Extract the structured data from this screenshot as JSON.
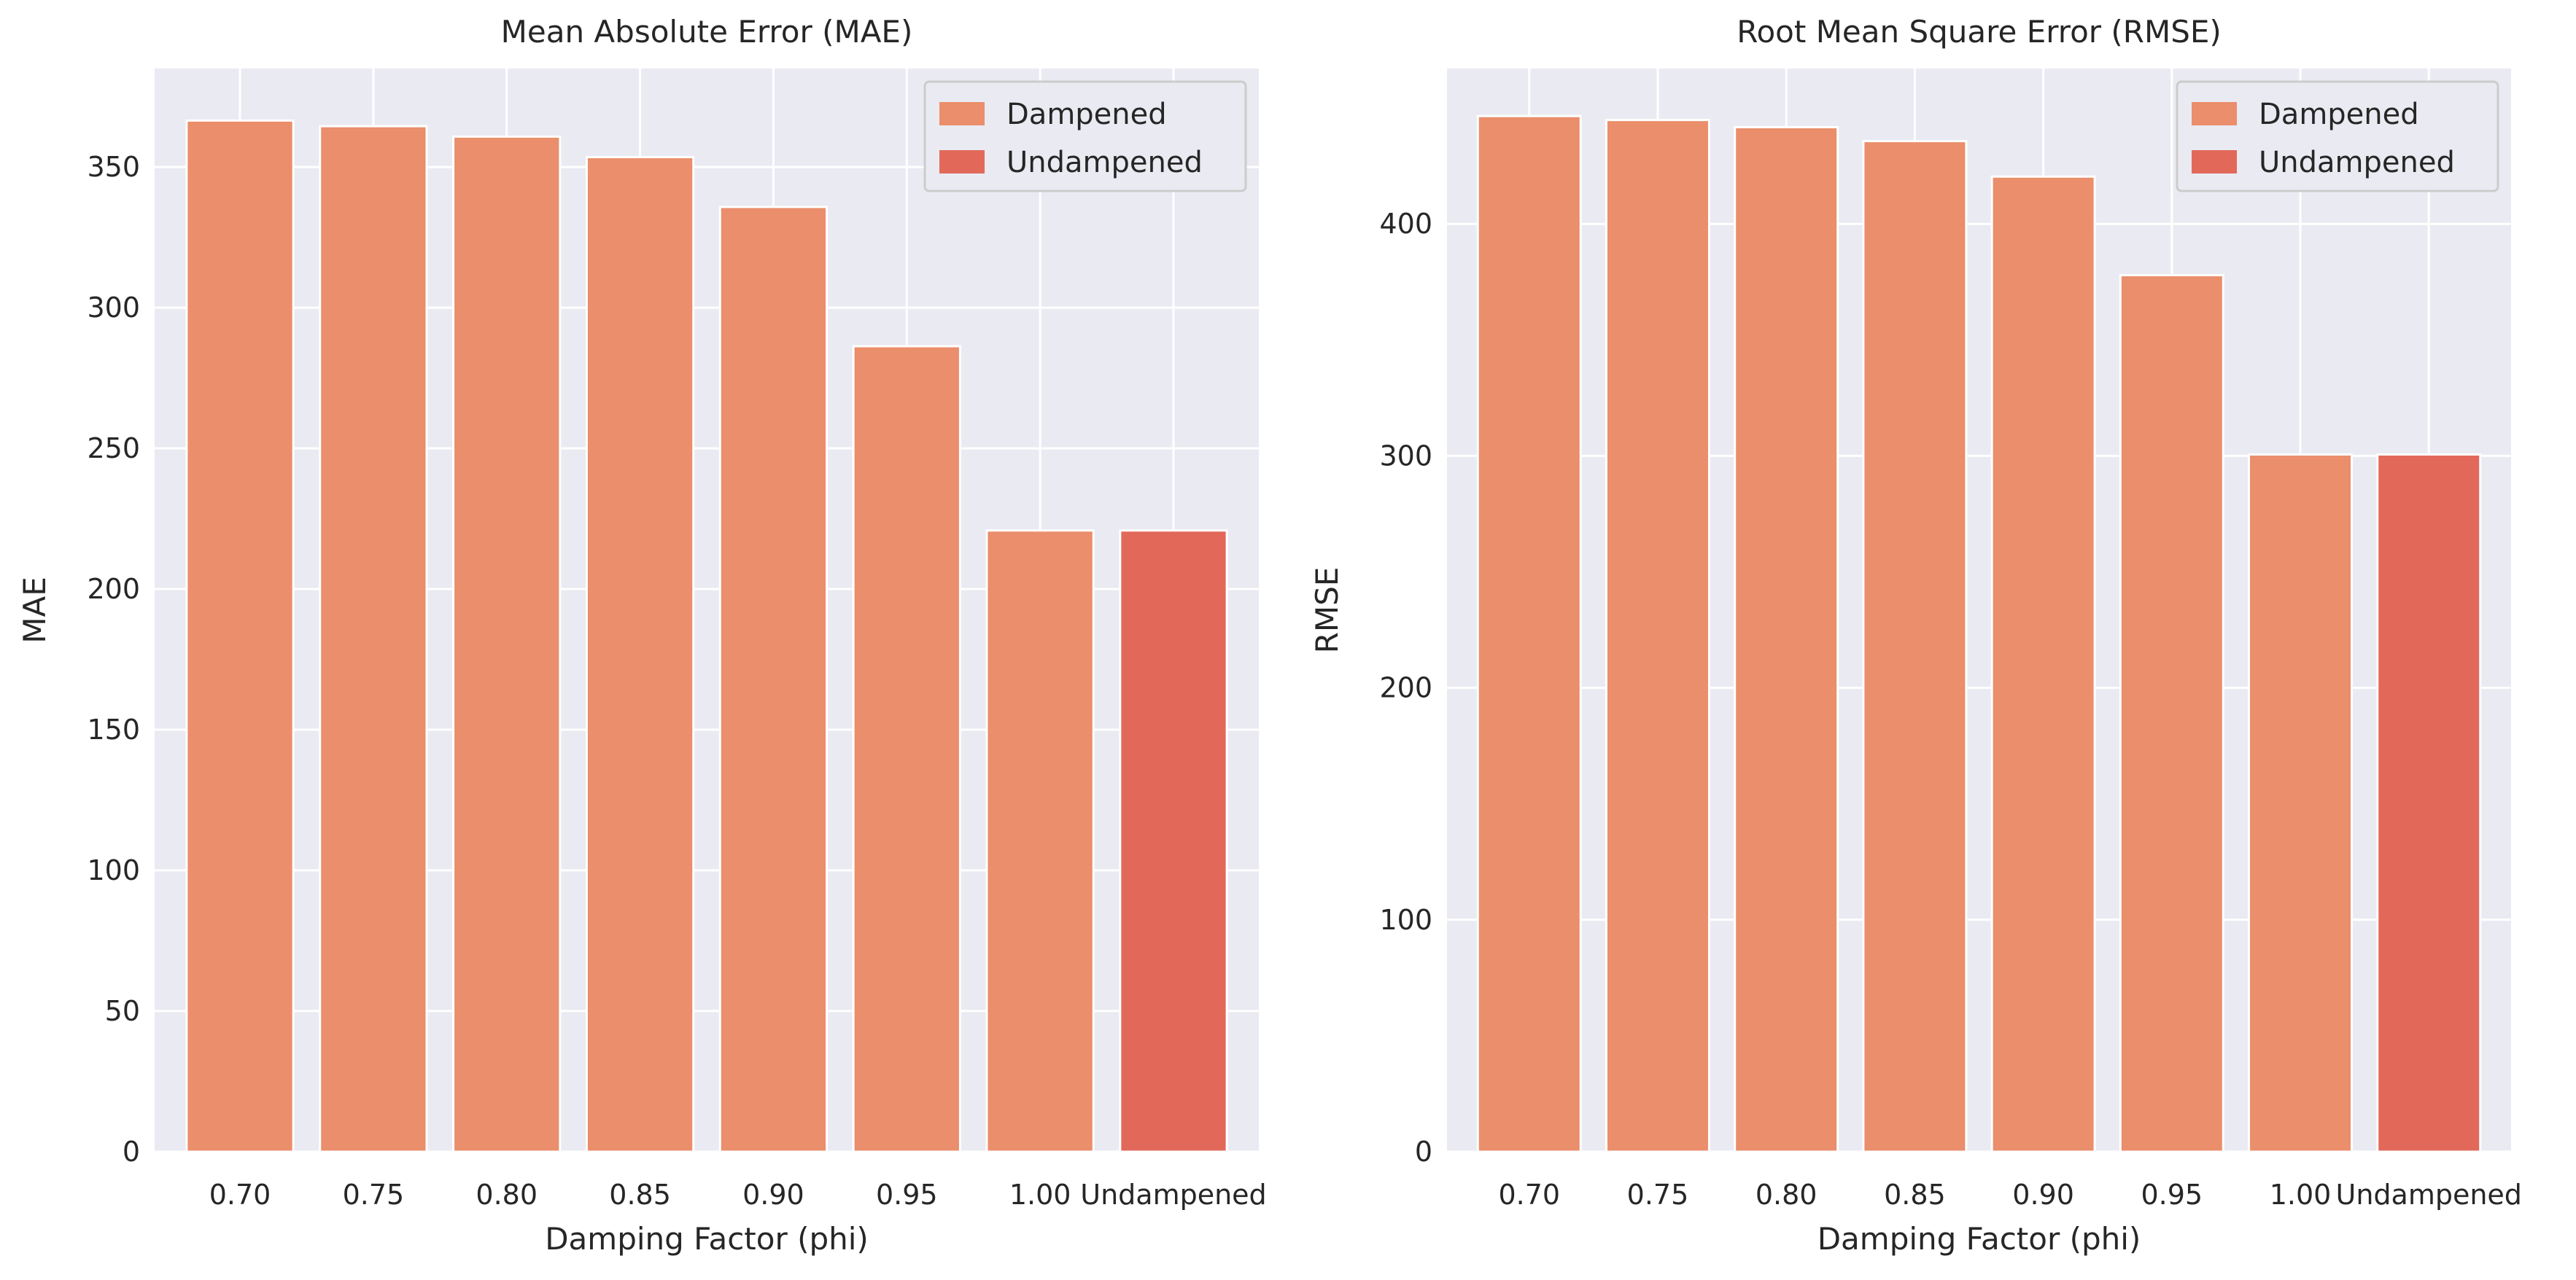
{
  "chart_data": [
    {
      "type": "bar",
      "title": "Mean Absolute Error (MAE)",
      "xlabel": "Damping Factor (phi)",
      "ylabel": "MAE",
      "categories": [
        "0.70",
        "0.75",
        "0.80",
        "0.85",
        "0.90",
        "0.95",
        "1.00",
        "Undampened"
      ],
      "yticks": [
        0,
        50,
        100,
        150,
        200,
        250,
        300,
        350
      ],
      "ylim": [
        0,
        385
      ],
      "grid": true,
      "legend_position": "top-right",
      "series": [
        {
          "name": "Dampened",
          "color": "#EA8E6B",
          "values": [
            366.5,
            364.5,
            360.8,
            353.5,
            335.8,
            286.3,
            220.8,
            null
          ]
        },
        {
          "name": "Undampened",
          "color": "#E2695A",
          "values": [
            null,
            null,
            null,
            null,
            null,
            null,
            null,
            220.8
          ]
        }
      ]
    },
    {
      "type": "bar",
      "title": "Root Mean Square Error (RMSE)",
      "xlabel": "Damping Factor (phi)",
      "ylabel": "RMSE",
      "categories": [
        "0.70",
        "0.75",
        "0.80",
        "0.85",
        "0.90",
        "0.95",
        "1.00",
        "Undampened"
      ],
      "yticks": [
        0,
        100,
        200,
        300,
        400
      ],
      "ylim": [
        0,
        467
      ],
      "grid": true,
      "legend_position": "top-right",
      "series": [
        {
          "name": "Dampened",
          "color": "#EA8E6B",
          "values": [
            446.5,
            444.8,
            441.7,
            435.7,
            420.4,
            377.9,
            300.6,
            null
          ]
        },
        {
          "name": "Undampened",
          "color": "#E2695A",
          "values": [
            null,
            null,
            null,
            null,
            null,
            null,
            null,
            300.6
          ]
        }
      ]
    }
  ]
}
